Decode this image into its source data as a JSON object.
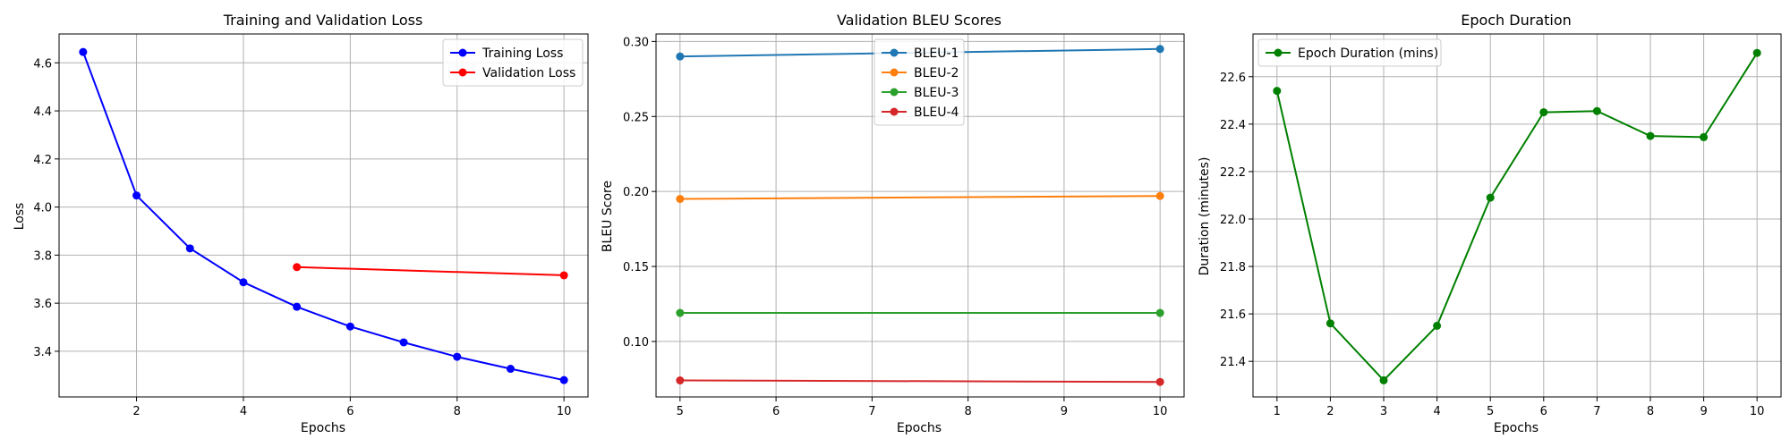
{
  "chart_data": [
    {
      "type": "line",
      "title": "Training and Validation Loss",
      "xlabel": "Epochs",
      "ylabel": "Loss",
      "xlim": [
        0.55,
        10.45
      ],
      "ylim": [
        3.21,
        4.72
      ],
      "xticks": [
        2,
        4,
        6,
        8,
        10
      ],
      "yticks": [
        3.4,
        3.6,
        3.8,
        4.0,
        4.2,
        4.4,
        4.6
      ],
      "tick_decimals": 1,
      "grid": true,
      "legend_position": "top-right",
      "series": [
        {
          "name": "Training Loss",
          "color": "#0000ff",
          "x": [
            1,
            2,
            3,
            4,
            5,
            6,
            7,
            8,
            9,
            10
          ],
          "y": [
            4.645,
            4.048,
            3.828,
            3.687,
            3.585,
            3.503,
            3.437,
            3.377,
            3.327,
            3.28
          ]
        },
        {
          "name": "Validation Loss",
          "color": "#ff0000",
          "x": [
            5,
            10
          ],
          "y": [
            3.75,
            3.716
          ]
        }
      ]
    },
    {
      "type": "line",
      "title": "Validation BLEU Scores",
      "xlabel": "Epochs",
      "ylabel": "BLEU Score",
      "xlim": [
        4.75,
        10.25
      ],
      "ylim": [
        0.063,
        0.305
      ],
      "xticks": [
        5,
        6,
        7,
        8,
        9,
        10
      ],
      "yticks": [
        0.1,
        0.15,
        0.2,
        0.25,
        0.3
      ],
      "tick_decimals": 2,
      "grid": true,
      "legend_position": "top-center",
      "series": [
        {
          "name": "BLEU-1",
          "color": "#1f77b4",
          "x": [
            5,
            10
          ],
          "y": [
            0.29,
            0.295
          ]
        },
        {
          "name": "BLEU-2",
          "color": "#ff7f0e",
          "x": [
            5,
            10
          ],
          "y": [
            0.195,
            0.197
          ]
        },
        {
          "name": "BLEU-3",
          "color": "#2ca02c",
          "x": [
            5,
            10
          ],
          "y": [
            0.119,
            0.119
          ]
        },
        {
          "name": "BLEU-4",
          "color": "#d62728",
          "x": [
            5,
            10
          ],
          "y": [
            0.074,
            0.073
          ]
        }
      ]
    },
    {
      "type": "line",
      "title": "Epoch Duration",
      "xlabel": "Epochs",
      "ylabel": "Duration (minutes)",
      "xlim": [
        0.55,
        10.45
      ],
      "ylim": [
        21.25,
        22.78
      ],
      "xticks": [
        1,
        2,
        3,
        4,
        5,
        6,
        7,
        8,
        9,
        10
      ],
      "yticks": [
        21.4,
        21.6,
        21.8,
        22.0,
        22.2,
        22.4,
        22.6
      ],
      "tick_decimals": 1,
      "grid": true,
      "legend_position": "top-left",
      "series": [
        {
          "name": "Epoch Duration (mins)",
          "color": "#008000",
          "x": [
            1,
            2,
            3,
            4,
            5,
            6,
            7,
            8,
            9,
            10
          ],
          "y": [
            22.54,
            21.56,
            21.32,
            21.55,
            22.09,
            22.45,
            22.455,
            22.35,
            22.345,
            22.7
          ]
        }
      ]
    }
  ]
}
